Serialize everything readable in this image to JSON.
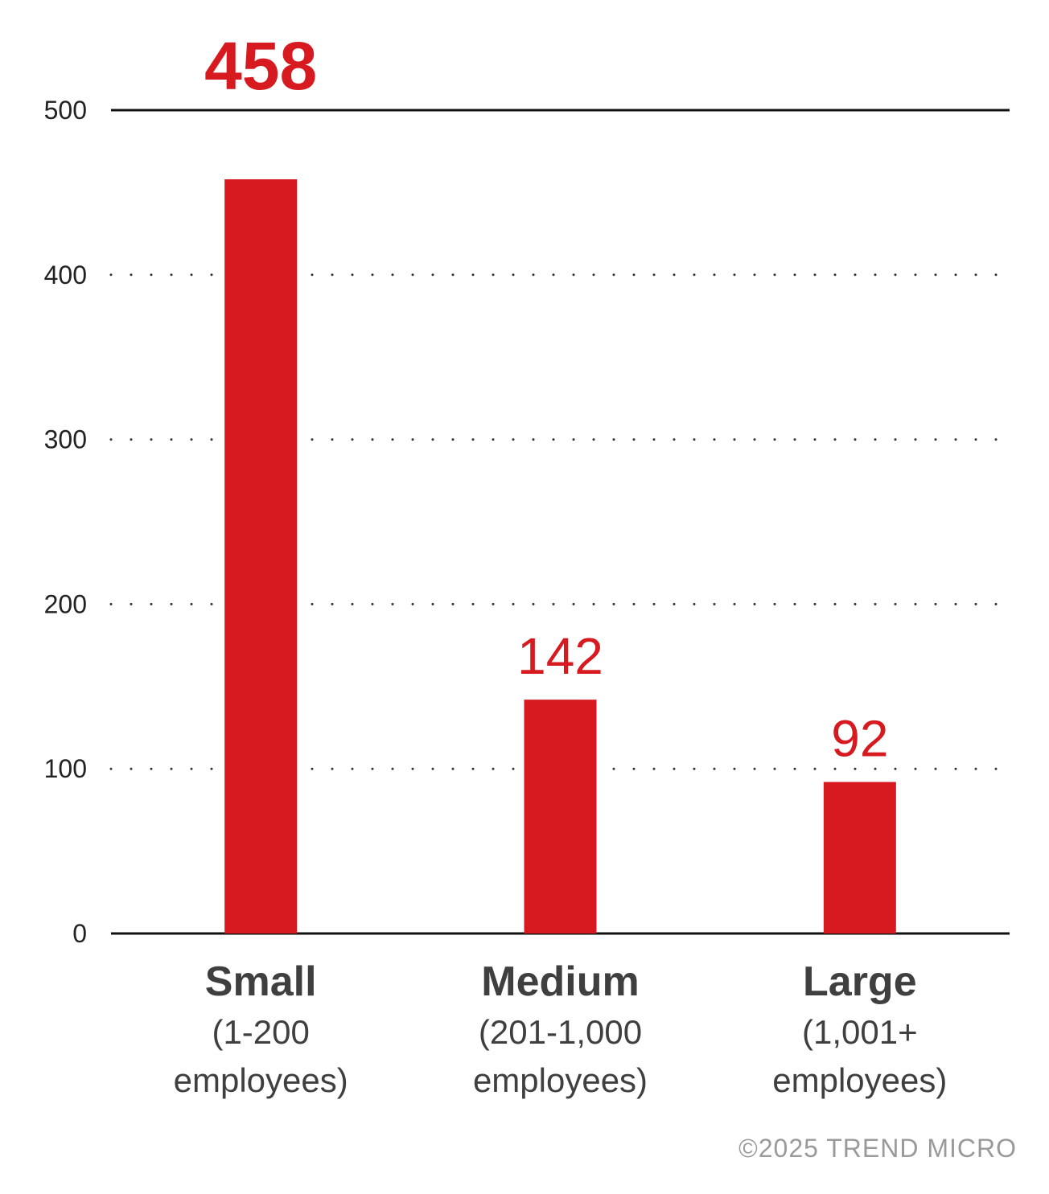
{
  "chart_data": {
    "type": "bar",
    "categories": [
      "Small",
      "Medium",
      "Large"
    ],
    "category_sublabels": [
      [
        "(1-200",
        "employees)"
      ],
      [
        "(201-1,000",
        "employees)"
      ],
      [
        "(1,001+",
        "employees)"
      ]
    ],
    "values": [
      458,
      142,
      92
    ],
    "value_labels": [
      "458",
      "142",
      "92"
    ],
    "ylim": [
      0,
      500
    ],
    "yticks": [
      "0",
      "100",
      "200",
      "300",
      "400",
      "500"
    ],
    "grid": "dotted horizontal",
    "bar_color": "#d71920",
    "label_color": "#d71920"
  },
  "footer": {
    "copyright": "©2025 TREND MICRO"
  }
}
